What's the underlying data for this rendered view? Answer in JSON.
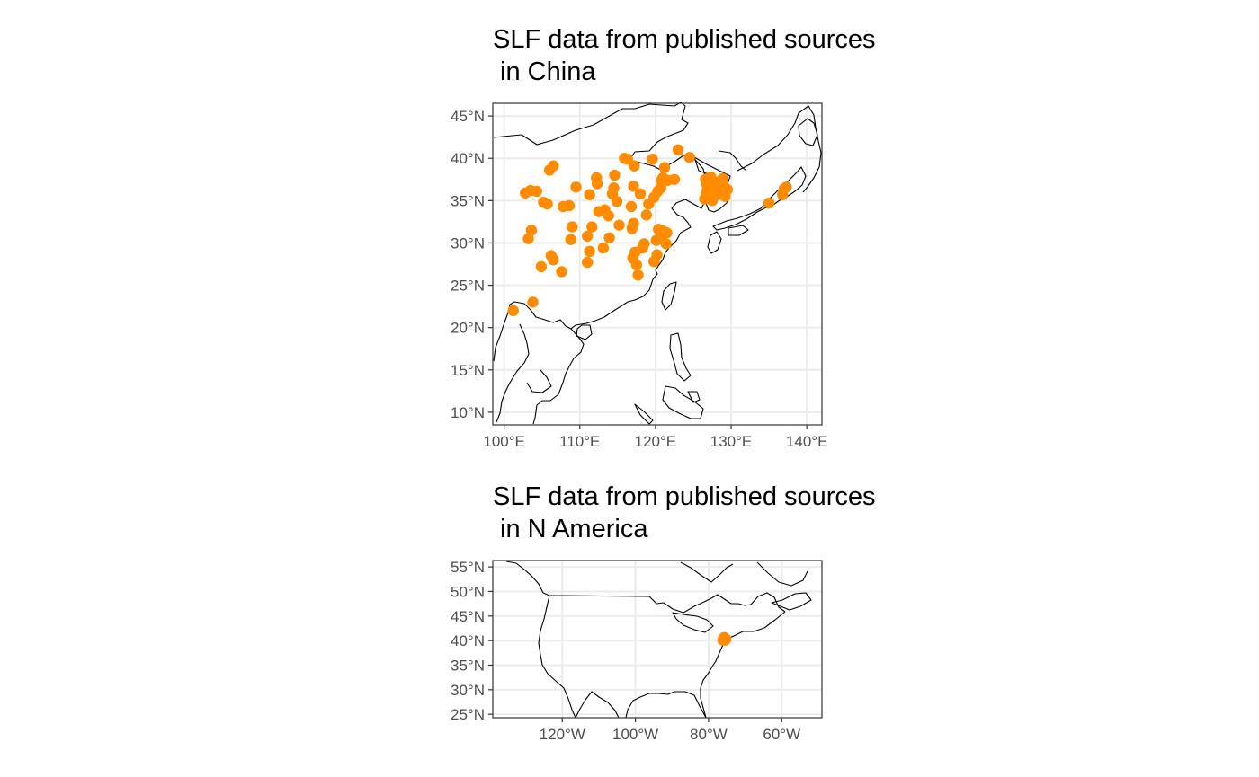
{
  "panels": [
    {
      "title_line1": "SLF data from published sources",
      "title_line2": " in China",
      "x_ticks": [
        {
          "value": 100,
          "label": "100°E"
        },
        {
          "value": 110,
          "label": "110°E"
        },
        {
          "value": 120,
          "label": "120°E"
        },
        {
          "value": 130,
          "label": "130°E"
        },
        {
          "value": 140,
          "label": "140°E"
        }
      ],
      "y_ticks": [
        {
          "value": 10,
          "label": "10°N"
        },
        {
          "value": 15,
          "label": "15°N"
        },
        {
          "value": 20,
          "label": "20°N"
        },
        {
          "value": 25,
          "label": "25°N"
        },
        {
          "value": 30,
          "label": "30°N"
        },
        {
          "value": 35,
          "label": "35°N"
        },
        {
          "value": 40,
          "label": "40°N"
        },
        {
          "value": 45,
          "label": "45°N"
        }
      ],
      "point_color": "#FF8C00"
    },
    {
      "title_line1": "SLF data from published sources",
      "title_line2": " in N America",
      "x_ticks": [
        {
          "value": -120,
          "label": "120°W"
        },
        {
          "value": -100,
          "label": "100°W"
        },
        {
          "value": -80,
          "label": "80°W"
        },
        {
          "value": -60,
          "label": "60°W"
        }
      ],
      "y_ticks": [
        {
          "value": 25,
          "label": "25°N"
        },
        {
          "value": 30,
          "label": "30°N"
        },
        {
          "value": 35,
          "label": "35°N"
        },
        {
          "value": 40,
          "label": "40°N"
        },
        {
          "value": 45,
          "label": "45°N"
        },
        {
          "value": 50,
          "label": "50°N"
        },
        {
          "value": 55,
          "label": "55°N"
        }
      ],
      "point_color": "#FF8C00"
    }
  ],
  "chart_data": [
    {
      "type": "scatter",
      "title": "SLF data from published sources\n in China",
      "xlim": [
        98.5,
        142
      ],
      "ylim": [
        8.5,
        46.5
      ],
      "grid": true,
      "points": [
        [
          101.2,
          22
        ],
        [
          103.8,
          23
        ],
        [
          103.2,
          30.5
        ],
        [
          103.6,
          31.5
        ],
        [
          102.8,
          35.9
        ],
        [
          103.5,
          36.2
        ],
        [
          104.3,
          36.1
        ],
        [
          105.2,
          34.8
        ],
        [
          105.7,
          34.6
        ],
        [
          106.0,
          38.6
        ],
        [
          106.5,
          39.1
        ],
        [
          106.2,
          28.5
        ],
        [
          106.5,
          28.0
        ],
        [
          104.9,
          27.2
        ],
        [
          107.6,
          26.6
        ],
        [
          107.8,
          34.3
        ],
        [
          108.6,
          34.4
        ],
        [
          109.5,
          36.6
        ],
        [
          109.0,
          31.9
        ],
        [
          108.8,
          30.4
        ],
        [
          111.0,
          27.7
        ],
        [
          111.3,
          29.0
        ],
        [
          111.0,
          30.8
        ],
        [
          111.6,
          31.9
        ],
        [
          111.3,
          35.7
        ],
        [
          112.3,
          37.0
        ],
        [
          112.2,
          37.7
        ],
        [
          112.5,
          33.7
        ],
        [
          113.3,
          33.9
        ],
        [
          113.8,
          33.2
        ],
        [
          113.1,
          29.4
        ],
        [
          113.9,
          30.6
        ],
        [
          114.3,
          35.8
        ],
        [
          114.5,
          36.5
        ],
        [
          114.6,
          38.0
        ],
        [
          114.9,
          34.9
        ],
        [
          115.2,
          32.1
        ],
        [
          115.9,
          40.0
        ],
        [
          116.3,
          39.9
        ],
        [
          117.2,
          39.1
        ],
        [
          117.1,
          36.7
        ],
        [
          116.8,
          34.3
        ],
        [
          117.1,
          32.3
        ],
        [
          116.9,
          31.7
        ],
        [
          117.3,
          28.9
        ],
        [
          117.0,
          28.2
        ],
        [
          117.5,
          27.4
        ],
        [
          117.7,
          26.2
        ],
        [
          118.3,
          29.4
        ],
        [
          118.5,
          29.9
        ],
        [
          118.0,
          35.8
        ],
        [
          118.8,
          33.3
        ],
        [
          119.1,
          34.6
        ],
        [
          119.8,
          35.4
        ],
        [
          120.3,
          36.1
        ],
        [
          119.6,
          39.9
        ],
        [
          120.7,
          36.5
        ],
        [
          120.1,
          30.3
        ],
        [
          119.8,
          27.8
        ],
        [
          120.2,
          28.6
        ],
        [
          120.4,
          31.6
        ],
        [
          120.8,
          30.8
        ],
        [
          121.0,
          31.4
        ],
        [
          121.5,
          31.2
        ],
        [
          121.4,
          29.9
        ],
        [
          121.2,
          38.9
        ],
        [
          121.6,
          37.4
        ],
        [
          122.5,
          37.5
        ],
        [
          121.0,
          37.7
        ],
        [
          120.8,
          37.4
        ],
        [
          123.0,
          41.0
        ],
        [
          124.5,
          40.1
        ],
        [
          126.6,
          37.5
        ],
        [
          126.8,
          36.9
        ],
        [
          126.9,
          35.4
        ],
        [
          127.0,
          36.2
        ],
        [
          127.3,
          37.8
        ],
        [
          127.4,
          36.3
        ],
        [
          127.5,
          35.0
        ],
        [
          127.8,
          37.0
        ],
        [
          128.2,
          36.5
        ],
        [
          128.6,
          35.8
        ],
        [
          128.9,
          37.6
        ],
        [
          129.2,
          35.5
        ],
        [
          129.5,
          36.3
        ],
        [
          126.7,
          36.0
        ],
        [
          127.2,
          37.2
        ],
        [
          127.9,
          35.6
        ],
        [
          128.3,
          37.2
        ],
        [
          129.0,
          36.8
        ],
        [
          126.5,
          35.2
        ],
        [
          135.0,
          34.7
        ],
        [
          136.8,
          35.7
        ],
        [
          137.0,
          36.4
        ],
        [
          137.3,
          36.6
        ]
      ]
    },
    {
      "type": "scatter",
      "title": "SLF data from published sources\n in N America",
      "xlim": [
        -139,
        -49
      ],
      "ylim": [
        24.3,
        56.3
      ],
      "grid": true,
      "points": [
        [
          -75.9,
          40.4
        ],
        [
          -75.6,
          40.3
        ],
        [
          -75.3,
          40.3
        ],
        [
          -76.1,
          40.1
        ],
        [
          -75.7,
          40.6
        ],
        [
          -75.5,
          40.1
        ]
      ]
    }
  ]
}
